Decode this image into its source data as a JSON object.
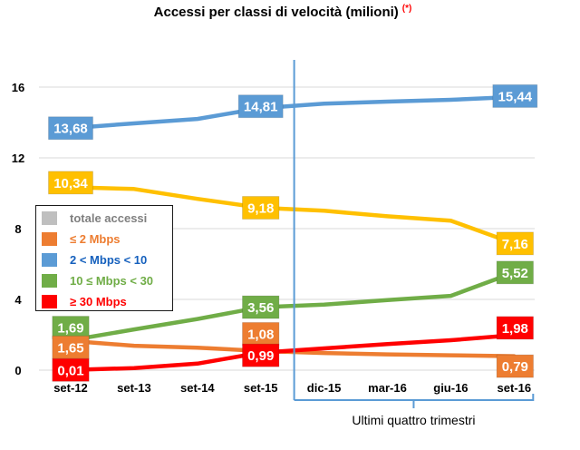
{
  "chart_data": {
    "type": "line",
    "title": "Accessi per classi di velocità (milioni)",
    "title_note": "(*)",
    "xlabel": "",
    "ylabel": "",
    "categories": [
      "set-12",
      "set-13",
      "set-14",
      "set-15",
      "dic-15",
      "mar-16",
      "giu-16",
      "set-16"
    ],
    "ylim": [
      0,
      16
    ],
    "yticks": [
      "0",
      "4",
      "8",
      "12",
      "16"
    ],
    "ytick_values": [
      0,
      4,
      8,
      12,
      16
    ],
    "grid": true,
    "legend": {
      "position": "left-center",
      "entries": [
        {
          "label": "totale accessi",
          "color": "#BFBFBF",
          "text_color": "#7F7F7F"
        },
        {
          "label": "≤ 2 Mbps",
          "color": "#ED7D31",
          "text_color": "#ED7D31"
        },
        {
          "label": "2 < Mbps < 10",
          "color": "#5B9BD5",
          "text_color": "#1560BD"
        },
        {
          "label": "10 ≤ Mbps < 30",
          "color": "#70AD47",
          "text_color": "#70AD47"
        },
        {
          "label": "≥ 30 Mbps",
          "color": "#FF0000",
          "text_color": "#FF0000"
        }
      ]
    },
    "series": [
      {
        "name": "2 < Mbps < 10",
        "color": "#5B9BD5",
        "values": [
          13.68,
          13.95,
          14.2,
          14.81,
          15.06,
          15.18,
          15.28,
          15.44
        ],
        "labels": {
          "0": "13,68",
          "3": "14,81",
          "7": "15,44"
        }
      },
      {
        "name": "",
        "color": "#FFC000",
        "values": [
          10.34,
          10.24,
          9.68,
          9.18,
          9.01,
          8.7,
          8.45,
          7.16
        ],
        "labels": {
          "0": "10,34",
          "3": "9,18",
          "7": "7,16"
        }
      },
      {
        "name": "10 ≤ Mbps < 30",
        "color": "#70AD47",
        "values": [
          1.69,
          2.3,
          2.89,
          3.56,
          3.71,
          3.96,
          4.2,
          5.52
        ],
        "labels": {
          "0": "1,69",
          "3": "3,56",
          "7": "5,52"
        }
      },
      {
        "name": "≤ 2 Mbps",
        "color": "#ED7D31",
        "values": [
          1.65,
          1.38,
          1.27,
          1.08,
          0.97,
          0.89,
          0.84,
          0.79
        ],
        "labels": {
          "0": "1,65",
          "3": "1,08",
          "7": "0,79"
        }
      },
      {
        "name": "≥ 30 Mbps",
        "color": "#FF0000",
        "values": [
          0.01,
          0.12,
          0.37,
          0.99,
          1.23,
          1.47,
          1.69,
          1.98
        ],
        "labels": {
          "0": "0,01",
          "3": "0,99",
          "7": "1,98"
        }
      }
    ],
    "annotation": {
      "text": "Ultimi quattro trimestri",
      "span": [
        "dic-15",
        "set-16"
      ],
      "color": "#5B9BD5"
    }
  }
}
